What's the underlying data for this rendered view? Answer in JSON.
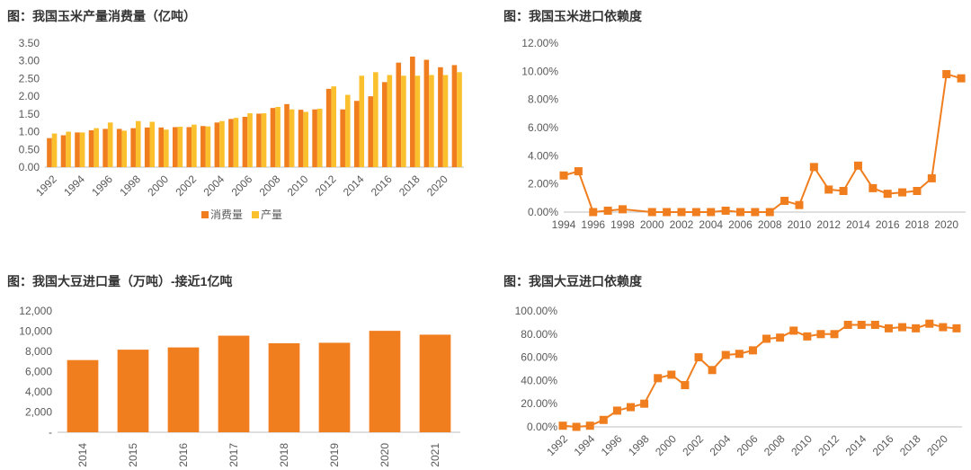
{
  "colors": {
    "orange": "#F07E1E",
    "yellow": "#FBC02D",
    "axis": "#BFBFBF",
    "text": "#595959"
  },
  "chart_data": [
    {
      "id": "corn_prod_cons",
      "type": "bar",
      "title": "图：我国玉米产量消费量（亿吨）",
      "categories": [
        "1992",
        "1993",
        "1994",
        "1995",
        "1996",
        "1997",
        "1998",
        "1999",
        "2000",
        "2001",
        "2002",
        "2003",
        "2004",
        "2005",
        "2006",
        "2007",
        "2008",
        "2009",
        "2010",
        "2011",
        "2012",
        "2013",
        "2014",
        "2015",
        "2016",
        "2017",
        "2018",
        "2019",
        "2020",
        "2021"
      ],
      "tick_labels": [
        "1992",
        "1994",
        "1996",
        "1998",
        "2000",
        "2002",
        "2004",
        "2006",
        "2008",
        "2010",
        "2012",
        "2014",
        "2016",
        "2018",
        "2020"
      ],
      "y_ticks": [
        "0.00",
        "0.50",
        "1.00",
        "1.50",
        "2.00",
        "2.50",
        "3.00",
        "3.50"
      ],
      "ylim": [
        0,
        3.5
      ],
      "legend": "bottom",
      "series": [
        {
          "name": "消费量",
          "color": "#F07E1E",
          "values": [
            0.82,
            0.9,
            0.98,
            1.04,
            1.08,
            1.08,
            1.1,
            1.12,
            1.12,
            1.13,
            1.13,
            1.16,
            1.26,
            1.36,
            1.42,
            1.51,
            1.67,
            1.78,
            1.62,
            1.63,
            2.21,
            1.63,
            1.87,
            2.0,
            2.4,
            2.95,
            3.12,
            3.03,
            2.82,
            2.88
          ]
        },
        {
          "name": "产量",
          "color": "#FBC02D",
          "values": [
            0.95,
            1.0,
            0.98,
            1.1,
            1.26,
            1.03,
            1.3,
            1.28,
            1.06,
            1.14,
            1.2,
            1.15,
            1.3,
            1.39,
            1.52,
            1.52,
            1.7,
            1.63,
            1.56,
            1.65,
            2.28,
            2.04,
            2.58,
            2.68,
            2.6,
            2.58,
            2.58,
            2.6,
            2.6,
            2.68
          ]
        }
      ]
    },
    {
      "id": "corn_import_dependence",
      "type": "line",
      "title": "图：我国玉米进口依赖度",
      "x": [
        1994,
        1995,
        1996,
        1997,
        1998,
        2000,
        2001,
        2002,
        2003,
        2004,
        2005,
        2006,
        2007,
        2008,
        2009,
        2010,
        2011,
        2012,
        2013,
        2014,
        2015,
        2016,
        2017,
        2018,
        2019,
        2020,
        2021
      ],
      "values": [
        2.6,
        2.9,
        0.0,
        0.1,
        0.2,
        0.0,
        0.0,
        0.0,
        0.0,
        0.0,
        0.1,
        0.0,
        0.0,
        0.0,
        0.8,
        0.5,
        3.2,
        1.6,
        1.5,
        3.3,
        1.7,
        1.3,
        1.4,
        1.5,
        2.4,
        9.8,
        9.5
      ],
      "tick_labels": [
        "1994",
        "1996",
        "1998",
        "2000",
        "2002",
        "2004",
        "2006",
        "2008",
        "2010",
        "2012",
        "2014",
        "2016",
        "2018",
        "2020"
      ],
      "y_ticks": [
        "0.00%",
        "2.00%",
        "4.00%",
        "6.00%",
        "8.00%",
        "10.00%",
        "12.00%"
      ],
      "ylim": [
        0,
        12
      ],
      "series_color": "#F07E1E"
    },
    {
      "id": "soy_imports",
      "type": "bar",
      "title": "图：我国大豆进口量（万吨）-接近1亿吨",
      "categories": [
        "2014",
        "2015",
        "2016",
        "2017",
        "2018",
        "2019",
        "2020",
        "2021"
      ],
      "values": [
        7140,
        8169,
        8391,
        9553,
        8803,
        8851,
        10033,
        9652
      ],
      "y_ticks": [
        "-",
        "2,000",
        "4,000",
        "6,000",
        "8,000",
        "10,000",
        "12,000"
      ],
      "ylim": [
        0,
        12000
      ],
      "series_color": "#F07E1E"
    },
    {
      "id": "soy_import_dependence",
      "type": "line",
      "title": "图：我国大豆进口依赖度",
      "x": [
        1992,
        1993,
        1994,
        1995,
        1996,
        1997,
        1998,
        1999,
        2000,
        2001,
        2002,
        2003,
        2004,
        2005,
        2006,
        2007,
        2008,
        2009,
        2010,
        2011,
        2012,
        2013,
        2014,
        2015,
        2016,
        2017,
        2018,
        2019,
        2020,
        2021
      ],
      "values": [
        1,
        0,
        1,
        6,
        14,
        17,
        20,
        42,
        45,
        36,
        60,
        49,
        62,
        63,
        66,
        76,
        77,
        83,
        78,
        80,
        80,
        88,
        88,
        88,
        85,
        86,
        85,
        89,
        86,
        85
      ],
      "tick_labels": [
        "1992",
        "1994",
        "1996",
        "1998",
        "2000",
        "2002",
        "2004",
        "2006",
        "2008",
        "2010",
        "2012",
        "2014",
        "2016",
        "2018",
        "2020"
      ],
      "y_ticks": [
        "0.00%",
        "20.00%",
        "40.00%",
        "60.00%",
        "80.00%",
        "100.00%"
      ],
      "ylim": [
        0,
        100
      ],
      "series_color": "#F07E1E"
    }
  ]
}
